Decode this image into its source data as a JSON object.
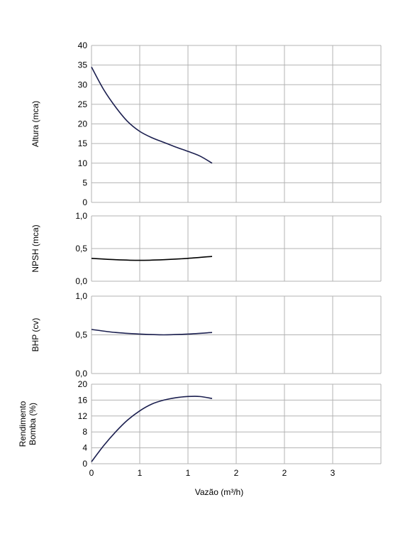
{
  "chart_data": [
    {
      "type": "line",
      "ylabel": "Altura (mca)",
      "ylim": [
        0,
        40
      ],
      "yticks": [
        "0",
        "5",
        "10",
        "15",
        "20",
        "25",
        "30",
        "35",
        "40"
      ],
      "grid": true,
      "series": [
        {
          "color": "#1b1f4f",
          "x": [
            0,
            0.25,
            0.5,
            0.75,
            1.0,
            1.25,
            1.5,
            1.75,
            2.0,
            2.25,
            2.5
          ],
          "y": [
            34.5,
            28.8,
            24.3,
            20.6,
            18.1,
            16.5,
            15.3,
            14.1,
            13.0,
            11.8,
            10.0
          ]
        }
      ]
    },
    {
      "type": "line",
      "ylabel": "NPSH (mca)",
      "ylim": [
        0,
        1
      ],
      "yticks": [
        "0,0",
        "0,5",
        "1,0"
      ],
      "grid": true,
      "series": [
        {
          "color": "#000000",
          "x": [
            0,
            0.5,
            1.0,
            1.5,
            2.0,
            2.5
          ],
          "y": [
            0.35,
            0.33,
            0.32,
            0.33,
            0.35,
            0.38
          ]
        }
      ]
    },
    {
      "type": "line",
      "ylabel": "BHP (cv)",
      "ylim": [
        0,
        1
      ],
      "yticks": [
        "0,0",
        "0,5",
        "1,0"
      ],
      "grid": true,
      "series": [
        {
          "color": "#1b1f4f",
          "x": [
            0,
            0.5,
            1.0,
            1.5,
            2.0,
            2.5
          ],
          "y": [
            0.57,
            0.53,
            0.51,
            0.5,
            0.51,
            0.53
          ]
        }
      ]
    },
    {
      "type": "line",
      "ylabel": "Rendimento Bomba (%)",
      "ylabel_lines": [
        "Rendimento",
        "Bomba (%)"
      ],
      "ylim": [
        0,
        20
      ],
      "yticks": [
        "0",
        "4",
        "8",
        "12",
        "16",
        "20"
      ],
      "xlabel": "Vazão (m³/h)",
      "xlim": [
        0,
        3
      ],
      "xticks": [
        "0",
        "1",
        "1",
        "2",
        "2",
        "3"
      ],
      "grid": true,
      "series": [
        {
          "color": "#1b1f4f",
          "x": [
            0,
            0.25,
            0.5,
            0.75,
            1.0,
            1.25,
            1.5,
            1.75,
            2.0,
            2.25,
            2.5
          ],
          "y": [
            0.5,
            4.5,
            8.0,
            11.0,
            13.3,
            15.0,
            16.0,
            16.6,
            16.9,
            16.9,
            16.4
          ]
        }
      ]
    }
  ]
}
